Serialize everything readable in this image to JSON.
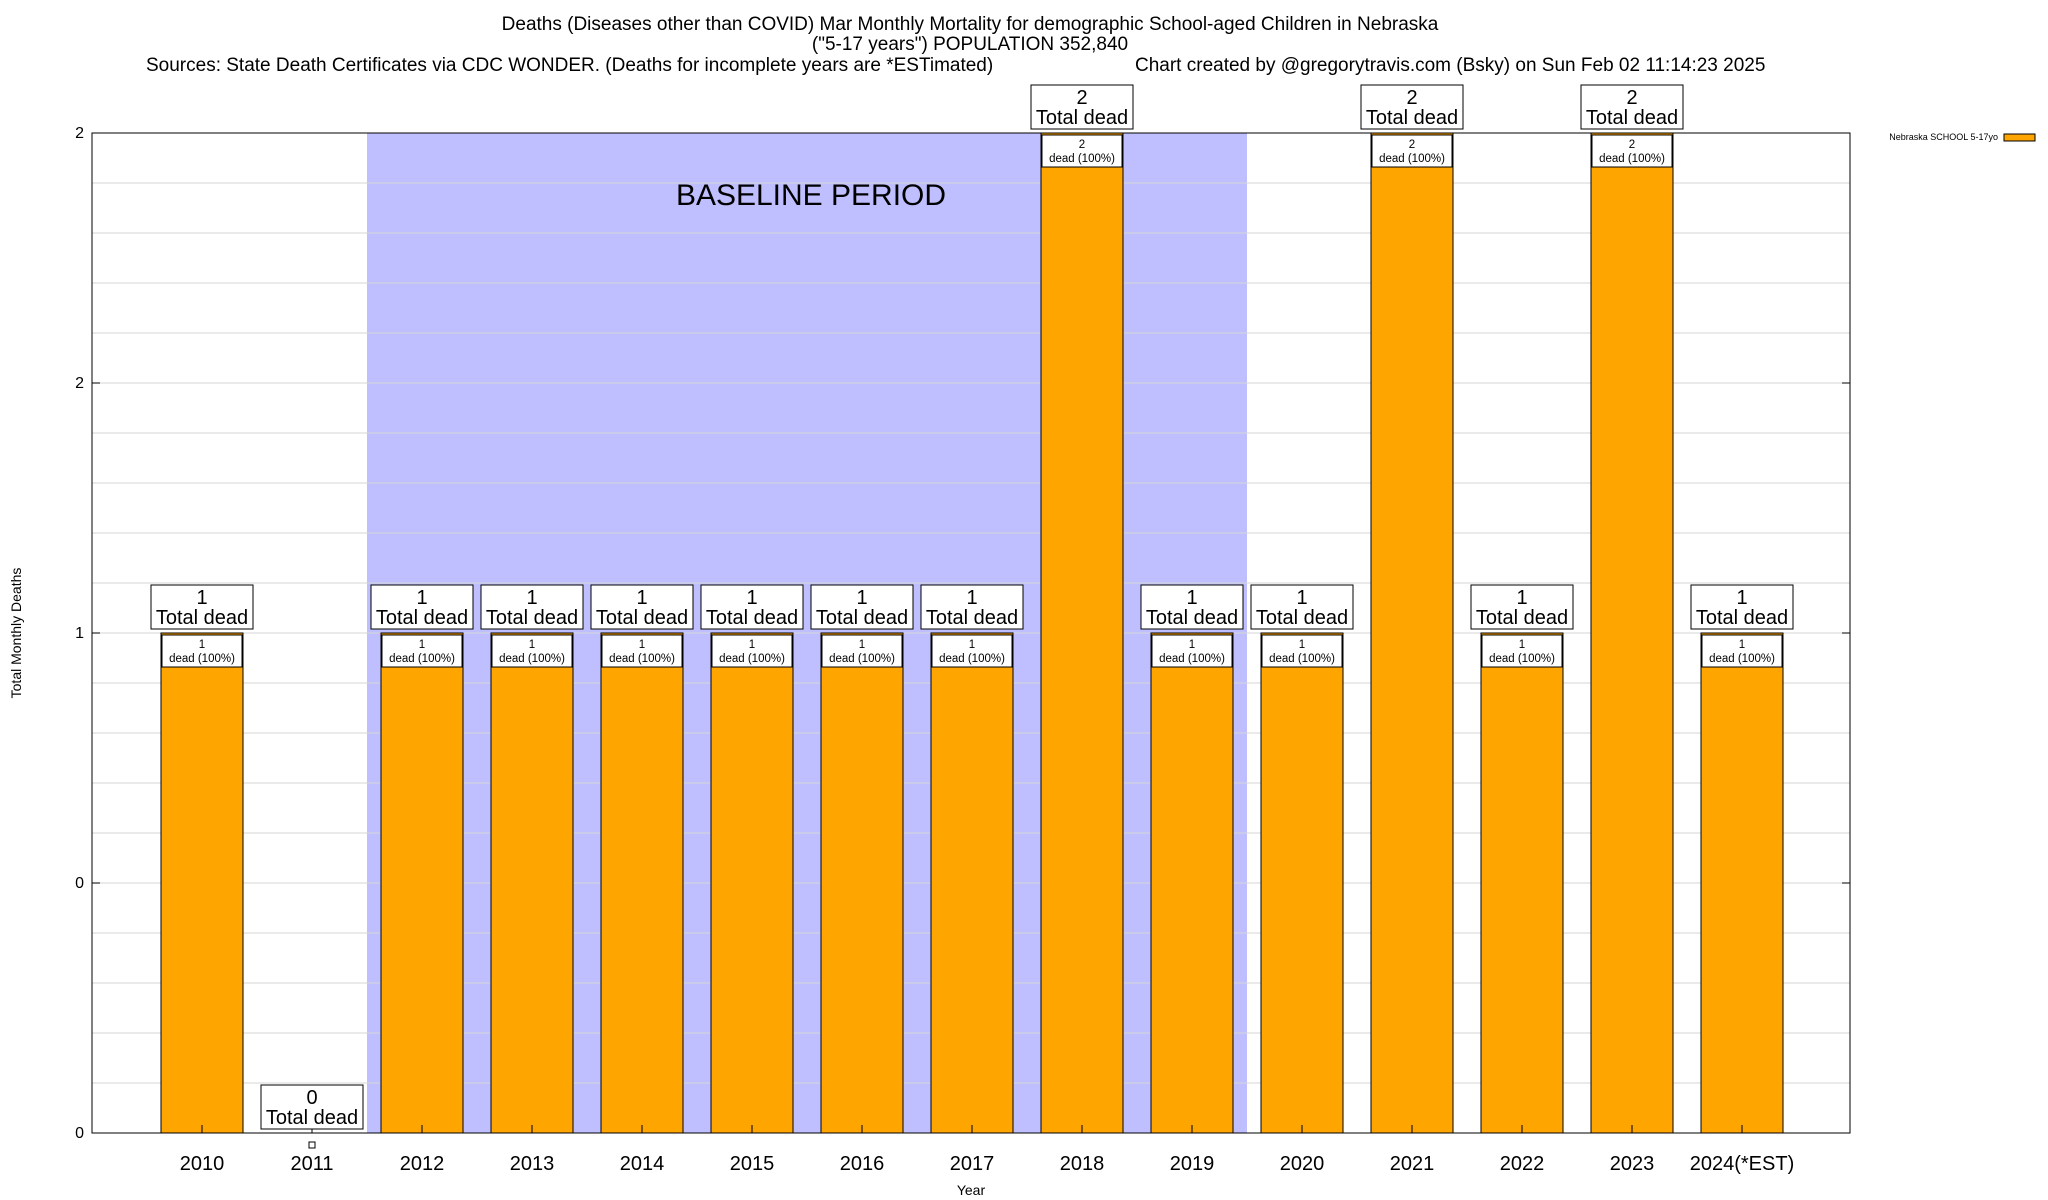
{
  "chart_data": {
    "type": "bar",
    "title_lines": [
      "Deaths (Diseases other than COVID) Mar Monthly Mortality for demographic School-aged Children in Nebraska",
      "(\"5-17 years\") POPULATION 352,840"
    ],
    "sources": "Sources: State Death Certificates via CDC WONDER. (Deaths for incomplete years are *ESTimated)",
    "credit": "Chart created by @gregorytravis.com (Bsky) on Sun Feb 02 11:14:23 2025",
    "xlabel": "Year",
    "ylabel": "Total Monthly Deaths",
    "ylim": [
      0,
      2
    ],
    "ytick_labels": [
      "0",
      "0",
      "1",
      "2",
      "2"
    ],
    "grid": true,
    "legend": {
      "position": "top-right",
      "entries": [
        "Nebraska SCHOOL 5-17yo"
      ]
    },
    "categories": [
      "2010",
      "2011",
      "2012",
      "2013",
      "2014",
      "2015",
      "2016",
      "2017",
      "2018",
      "2019",
      "2020",
      "2021",
      "2022",
      "2023",
      "2024(*EST)"
    ],
    "series": [
      {
        "name": "Nebraska SCHOOL 5-17yo",
        "color": "#FFA500",
        "values": [
          1,
          0,
          1,
          1,
          1,
          1,
          1,
          1,
          2,
          1,
          1,
          2,
          1,
          2,
          1
        ]
      }
    ],
    "total_label_suffix": "Total dead",
    "segment_label_suffix": "dead (100%)",
    "baseline": {
      "label": "BASELINE PERIOD",
      "from": "2012",
      "to": "2019",
      "color": "#BFBFFF"
    }
  }
}
